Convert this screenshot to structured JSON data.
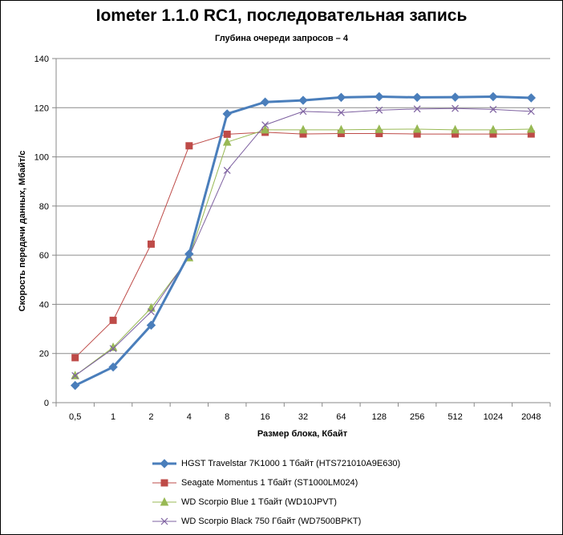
{
  "chart_data": {
    "type": "line",
    "title": "Iometer 1.1.0 RC1, последовательная запись",
    "subtitle": "Глубина очереди запросов – 4",
    "xlabel": "Размер блока, Кбайт",
    "ylabel": "Скорость передачи данных, Мбайт/с",
    "categories": [
      "0,5",
      "1",
      "2",
      "4",
      "8",
      "16",
      "32",
      "64",
      "128",
      "256",
      "512",
      "1024",
      "2048"
    ],
    "ylim": [
      0,
      140
    ],
    "yticks": [
      "0",
      "20",
      "40",
      "60",
      "80",
      "100",
      "120",
      "140"
    ],
    "grid": true,
    "legend_position": "bottom",
    "series": [
      {
        "name": "HGST Travelstar 7K1000 1 Тбайт (HTS721010A9E630)",
        "color": "#4a7ebb",
        "marker": "diamond",
        "width": 3,
        "values": [
          7,
          14.5,
          31.5,
          60.5,
          117.5,
          122.3,
          123,
          124.2,
          124.5,
          124.2,
          124.3,
          124.5,
          124
        ]
      },
      {
        "name": "Seagate Momentus 1 Тбайт  (ST1000LM024)",
        "color": "#be4b48",
        "marker": "square",
        "width": 1,
        "values": [
          18.3,
          33.5,
          64.5,
          104.5,
          109.2,
          110,
          109.3,
          109.5,
          109.5,
          109.3,
          109.3,
          109.3,
          109.3
        ]
      },
      {
        "name": "WD Scorpio Blue 1 Тбайт (WD10JPVT)",
        "color": "#98b954",
        "marker": "triangle",
        "width": 1,
        "values": [
          11,
          22.5,
          38.5,
          59,
          106,
          111,
          111,
          111,
          111.2,
          111.3,
          111,
          111,
          111.3
        ]
      },
      {
        "name": "WD Scorpio Black 750 Гбайт (WD7500BPKT)",
        "color": "#7d60a0",
        "marker": "x",
        "width": 1,
        "values": [
          11,
          22,
          37,
          59.5,
          94.5,
          113,
          118.5,
          118,
          119,
          119.5,
          119.7,
          119.3,
          118.5
        ]
      }
    ]
  }
}
